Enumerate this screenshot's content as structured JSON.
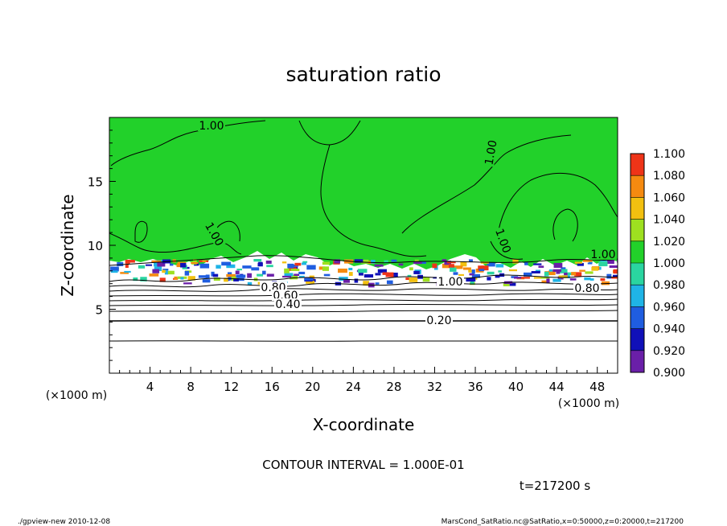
{
  "chart_data": {
    "type": "heatmap",
    "title": "saturation ratio",
    "xlabel": "X-coordinate",
    "ylabel": "Z-coordinate",
    "x_unit_note": "(×1000 m)",
    "y_unit_note": "(×1000 m)",
    "xlim": [
      0,
      50
    ],
    "ylim": [
      0,
      20
    ],
    "x_ticks": [
      "4",
      "8",
      "12",
      "16",
      "20",
      "24",
      "28",
      "32",
      "36",
      "40",
      "44",
      "48"
    ],
    "y_ticks": [
      "5",
      "10",
      "15"
    ],
    "colorbar": {
      "levels": [
        "0.900",
        "0.920",
        "0.940",
        "0.960",
        "0.980",
        "1.000",
        "1.020",
        "1.040",
        "1.060",
        "1.080",
        "1.100"
      ],
      "colors": [
        "#6a1fa8",
        "#1010b8",
        "#1f5de0",
        "#1fb4e6",
        "#2ad5a0",
        "#22d12a",
        "#9ee020",
        "#f2c010",
        "#f58a10",
        "#ee3418",
        "#f6a0a0"
      ]
    },
    "contour_labels": [
      "1.00",
      "1.00",
      "1.00",
      "1.00",
      "0.80",
      "0.60",
      "0.40",
      "0.20",
      "0.80",
      "1.00",
      "1.00"
    ],
    "contour_interval_text": "CONTOUR INTERVAL = 1.000E-01",
    "time_text": "t=217200 s"
  },
  "footer": {
    "left": "./gpview-new   2010-12-08",
    "right": "MarsCond_SatRatio.nc@SatRatio,x=0:50000,z=0:20000,t=217200"
  }
}
